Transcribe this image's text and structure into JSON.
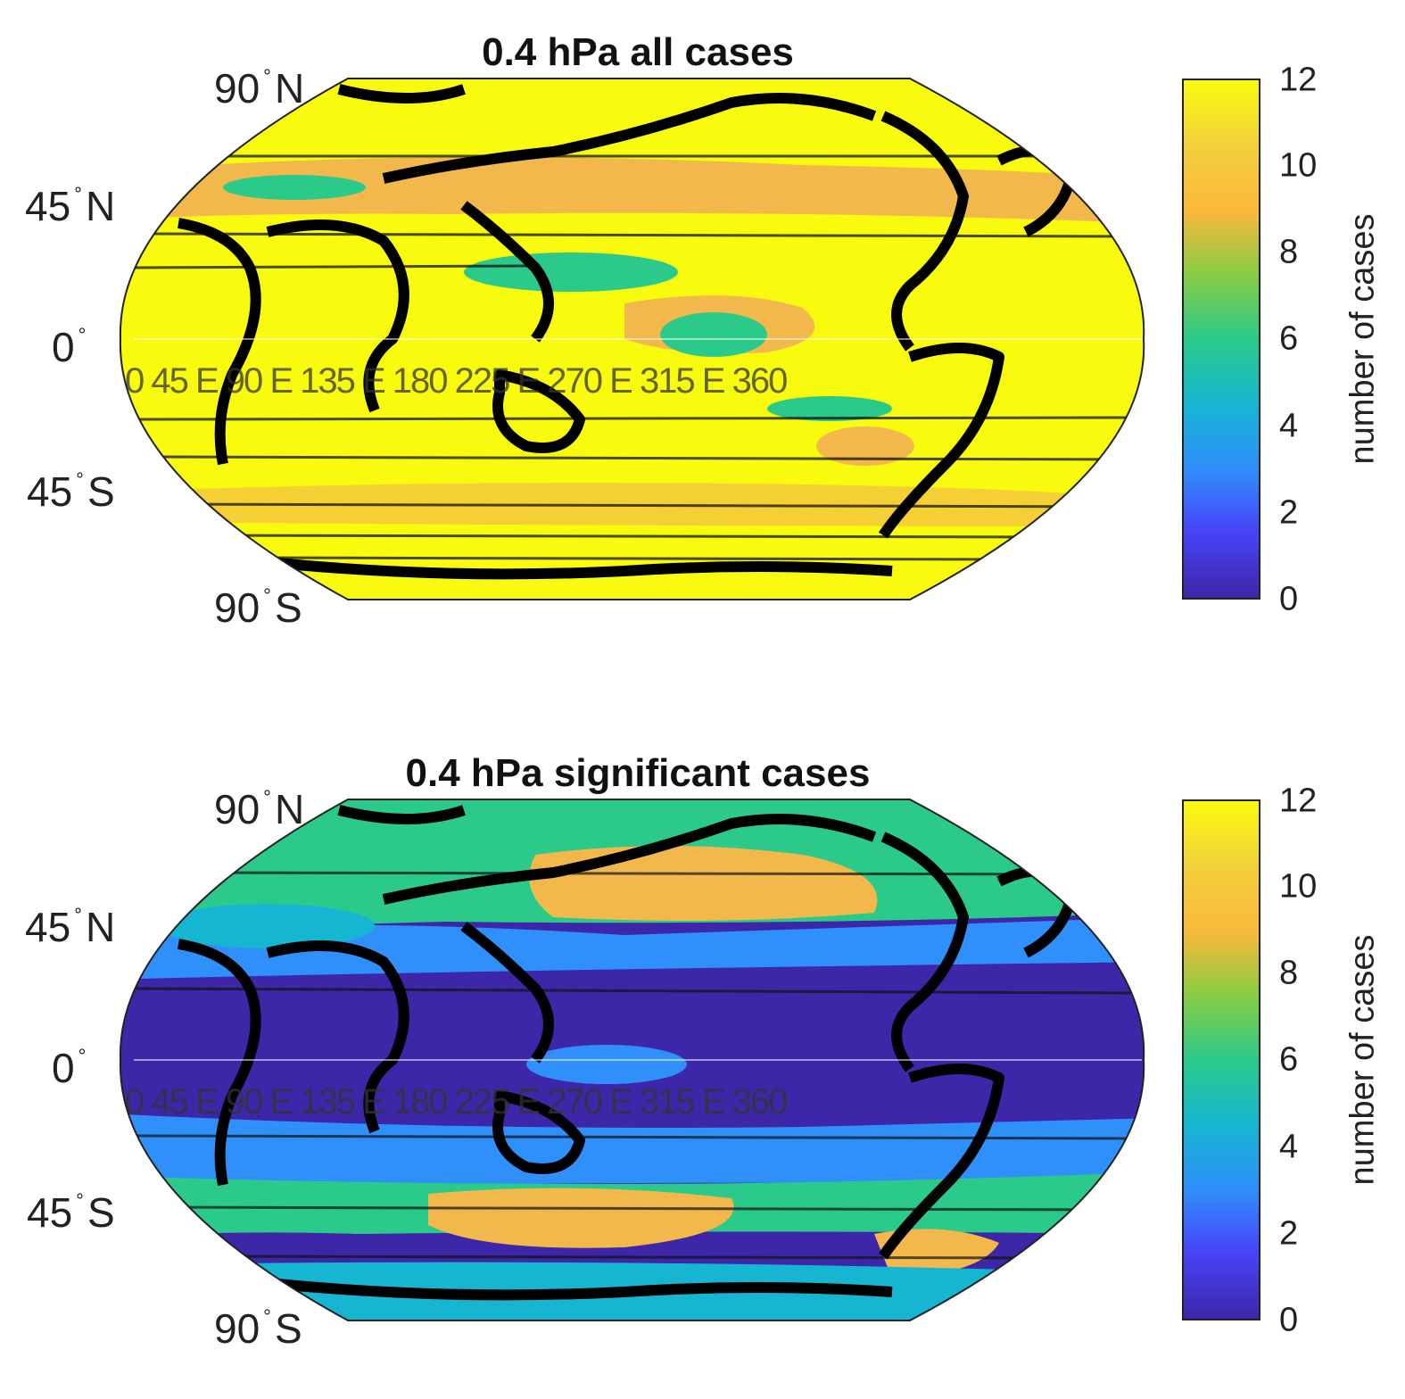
{
  "colorbar": {
    "label": "number of cases",
    "ticks": [
      "0",
      "2",
      "4",
      "6",
      "8",
      "10",
      "12"
    ],
    "range": [
      0,
      12
    ],
    "colormap": [
      "#3e26a8",
      "#4743f8",
      "#2f8ffb",
      "#16b6d2",
      "#2bca8a",
      "#89cc44",
      "#fbb93c",
      "#f2d13b",
      "#f9fb0e"
    ]
  },
  "lat_labels": {
    "n90": "90",
    "n45": "45",
    "eq": "0",
    "s45": "45",
    "s90": "90",
    "n": "N",
    "s": "S",
    "deg": "°"
  },
  "panels": [
    {
      "title": "0.4 hPa all cases",
      "lon_text": "0  45 E 90 E 135 E 180  225 E 270 E 315 E 360",
      "background_color": "#f9fb0e",
      "regions": [
        {
          "name": "orange-band-north",
          "color": "#f2b84b"
        },
        {
          "name": "green-patch-north",
          "color": "#2bca8a"
        },
        {
          "name": "orange-patch-equator",
          "color": "#f2b84b"
        },
        {
          "name": "green-patch-south",
          "color": "#2bca8a"
        }
      ]
    },
    {
      "title": "0.4 hPa significant cases",
      "lon_text": "0  45 E 90 E 135 E 180  225 E 270 E 315 E 360",
      "background_color": "#3e26a8",
      "regions": [
        {
          "name": "green-band-north",
          "color": "#2bca8a"
        },
        {
          "name": "orange-patch-north",
          "color": "#f2b84b"
        },
        {
          "name": "blue-band-north",
          "color": "#2f8ffb"
        },
        {
          "name": "blue-band-south",
          "color": "#2f8ffb"
        },
        {
          "name": "green-band-south",
          "color": "#2bca8a"
        },
        {
          "name": "orange-patch-south",
          "color": "#f2b84b"
        }
      ]
    }
  ]
}
